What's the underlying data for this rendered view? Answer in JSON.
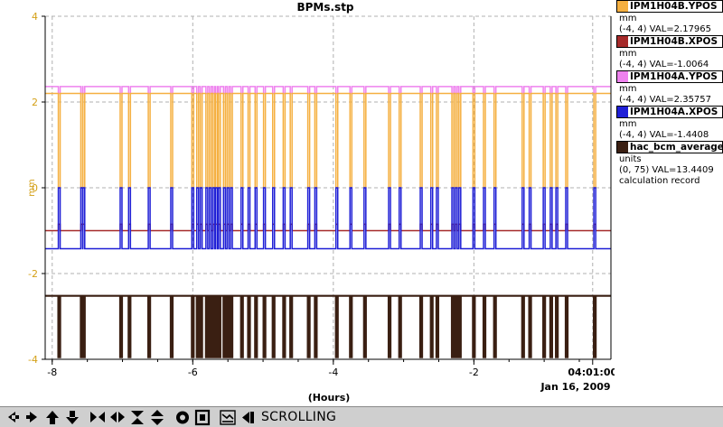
{
  "chart_data": {
    "type": "line",
    "title": "BPMs.stp",
    "xlabel": "(Hours)",
    "ylabel": "mm",
    "xlim": [
      -8.1,
      -0.05
    ],
    "ylim": [
      -4,
      4
    ],
    "x_ticks": [
      {
        "value": -8,
        "label": "-8"
      },
      {
        "value": -6,
        "label": "-6"
      },
      {
        "value": -4,
        "label": "-4"
      },
      {
        "value": -2,
        "label": "-2"
      },
      {
        "value": -0.31,
        "label": "04:01:00"
      }
    ],
    "y_ticks": [
      {
        "value": 4,
        "label": "4"
      },
      {
        "value": 2,
        "label": "2"
      },
      {
        "value": 0,
        "label": "0"
      },
      {
        "value": -2,
        "label": "-2"
      },
      {
        "value": -4,
        "label": "-4"
      }
    ],
    "date_label": "Jan 16, 2009",
    "grid": true,
    "series": [
      {
        "name": "IPM1H04A.YPOS",
        "color": "#ee82ee",
        "baseline": 2.36,
        "spike_to": 2.2
      },
      {
        "name": "IPM1H04B.YPOS",
        "color": "#f5b041",
        "baseline": 2.2,
        "spike_to": 0.0
      },
      {
        "name": "IPM1H04B.XPOS",
        "color": "#a52a2a",
        "baseline": -1.0,
        "spike_to": -0.85
      },
      {
        "name": "IPM1H04A.XPOS",
        "color": "#1f1fd6",
        "baseline": -1.42,
        "spike_to": 0.0
      },
      {
        "name": "hac_bcm_average",
        "color": "#3a1f12",
        "baseline": -2.52,
        "spike_to": -3.95
      }
    ],
    "dropout_hours": [
      -7.9,
      -7.58,
      -7.55,
      -7.02,
      -6.9,
      -6.62,
      -6.3,
      -6.0,
      -5.93,
      -5.88,
      -5.8,
      -5.75,
      -5.7,
      -5.66,
      -5.62,
      -5.55,
      -5.5,
      -5.45,
      -5.3,
      -5.2,
      -5.1,
      -4.98,
      -4.85,
      -4.7,
      -4.6,
      -4.35,
      -4.25,
      -3.95,
      -3.75,
      -3.55,
      -3.2,
      -3.05,
      -2.75,
      -2.6,
      -2.52,
      -2.3,
      -2.25,
      -2.2,
      -2.0,
      -1.85,
      -1.7,
      -1.3,
      -1.2,
      -1.0,
      -0.9,
      -0.82,
      -0.68,
      -0.28
    ]
  },
  "legend": [
    {
      "name": "IPM1H04B.YPOS",
      "color": "#f5b041",
      "unit": "mm",
      "range_value": "(-4, 4) VAL=2.17965"
    },
    {
      "name": "IPM1H04B.XPOS",
      "color": "#a52a2a",
      "unit": "mm",
      "range_value": "(-4, 4) VAL=-1.0064"
    },
    {
      "name": "IPM1H04A.YPOS",
      "color": "#ee82ee",
      "unit": "mm",
      "range_value": "(-4, 4) VAL=2.35757"
    },
    {
      "name": "IPM1H04A.XPOS",
      "color": "#1f1fd6",
      "unit": "mm",
      "range_value": "(-4, 4) VAL=-1.4408"
    },
    {
      "name": "hac_bcm_average",
      "color": "#3a1f12",
      "unit": "units",
      "range_value": "(0, 75) VAL=13.4409",
      "note": "calculation record"
    }
  ],
  "toolbar": {
    "buttons": [
      {
        "name": "scroll-left-button",
        "icon": "arrow-left-icon"
      },
      {
        "name": "scroll-right-button",
        "icon": "arrow-right-icon"
      },
      {
        "name": "scroll-up-button",
        "icon": "arrow-up-icon"
      },
      {
        "name": "scroll-down-button",
        "icon": "arrow-down-icon"
      },
      {
        "name": "zoom-in-x-button",
        "icon": "zoom-in-x-icon"
      },
      {
        "name": "zoom-out-x-button",
        "icon": "zoom-out-x-icon"
      },
      {
        "name": "zoom-in-y-button",
        "icon": "zoom-in-y-icon"
      },
      {
        "name": "zoom-out-y-button",
        "icon": "zoom-out-y-icon"
      },
      {
        "name": "reset-button",
        "icon": "target-icon"
      },
      {
        "name": "stop-button",
        "icon": "stop-icon"
      },
      {
        "name": "time-span-button",
        "icon": "time-span-icon"
      },
      {
        "name": "back-to-now-button",
        "icon": "back-to-now-icon"
      }
    ],
    "status": "SCROLLING"
  },
  "colors": {
    "axis_labels": "#d4a017",
    "grid": "#b0b0b0",
    "toolbar_bg": "#cfcfcf"
  }
}
